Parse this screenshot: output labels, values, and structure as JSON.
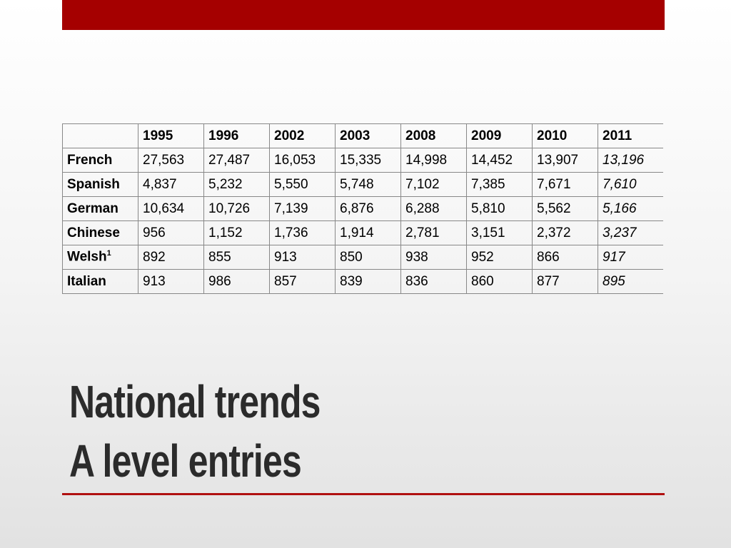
{
  "table": {
    "header": [
      "1995",
      "1996",
      "2002",
      "2003",
      "2008",
      "2009",
      "2010",
      "2011"
    ],
    "rows": [
      {
        "label": "French",
        "values": [
          "27,563",
          "27,487",
          "16,053",
          "15,335",
          "14,998",
          "14,452",
          "13,907",
          "13,196"
        ]
      },
      {
        "label": "Spanish",
        "values": [
          "4,837",
          "5,232",
          "5,550",
          "5,748",
          "7,102",
          "7,385",
          "7,671",
          "7,610"
        ]
      },
      {
        "label": "German",
        "values": [
          "10,634",
          "10,726",
          "7,139",
          "6,876",
          "6,288",
          "5,810",
          "5,562",
          "5,166"
        ]
      },
      {
        "label": "Chinese",
        "values": [
          "956",
          "1,152",
          "1,736",
          "1,914",
          "2,781",
          "3,151",
          "2,372",
          "3,237"
        ]
      },
      {
        "label": "Welsh",
        "note": "1",
        "values": [
          "892",
          "855",
          "913",
          "850",
          "938",
          "952",
          "866",
          "917"
        ]
      },
      {
        "label": "Italian",
        "values": [
          "913",
          "986",
          "857",
          "839",
          "836",
          "860",
          "877",
          "895"
        ]
      }
    ]
  },
  "title": [
    "National trends",
    "A level entries"
  ]
}
